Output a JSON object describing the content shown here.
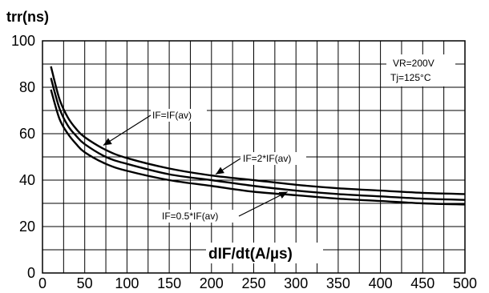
{
  "chart_data": {
    "type": "line",
    "ylabel": "trr(ns)",
    "xlabel": "dIF/dt(A/µs)",
    "xlim": [
      0,
      500
    ],
    "ylim": [
      0,
      100
    ],
    "x_ticks": [
      "0",
      "50",
      "100",
      "150",
      "200",
      "250",
      "300",
      "350",
      "400",
      "450",
      "500"
    ],
    "y_ticks": [
      "0",
      "20",
      "40",
      "60",
      "80",
      "100"
    ],
    "grid": true,
    "conditions": [
      "VR=200V",
      "Tj=125°C"
    ],
    "x": [
      10,
      20,
      30,
      40,
      50,
      75,
      100,
      150,
      200,
      250,
      300,
      350,
      400,
      450,
      500
    ],
    "series": [
      {
        "name": "IF=2*IF(av)",
        "values": [
          89,
          75,
          67,
          62,
          58.5,
          53,
          49.5,
          45,
          42,
          40,
          38,
          36.5,
          35.5,
          34.5,
          34
        ]
      },
      {
        "name": "IF=IF(av)",
        "values": [
          84,
          71,
          63.5,
          59,
          55.5,
          50,
          47,
          42.5,
          40,
          37.5,
          35.5,
          34,
          33,
          32,
          31.5
        ]
      },
      {
        "name": "IF=0.5*IF(av)",
        "values": [
          79,
          66.5,
          60,
          55.5,
          52,
          47,
          44,
          40,
          37.5,
          35,
          33.5,
          32,
          31,
          30,
          29.5
        ]
      }
    ],
    "annotations": [
      "IF=IF(av)",
      "IF=2*IF(av)",
      "IF=0.5*IF(av)"
    ]
  }
}
